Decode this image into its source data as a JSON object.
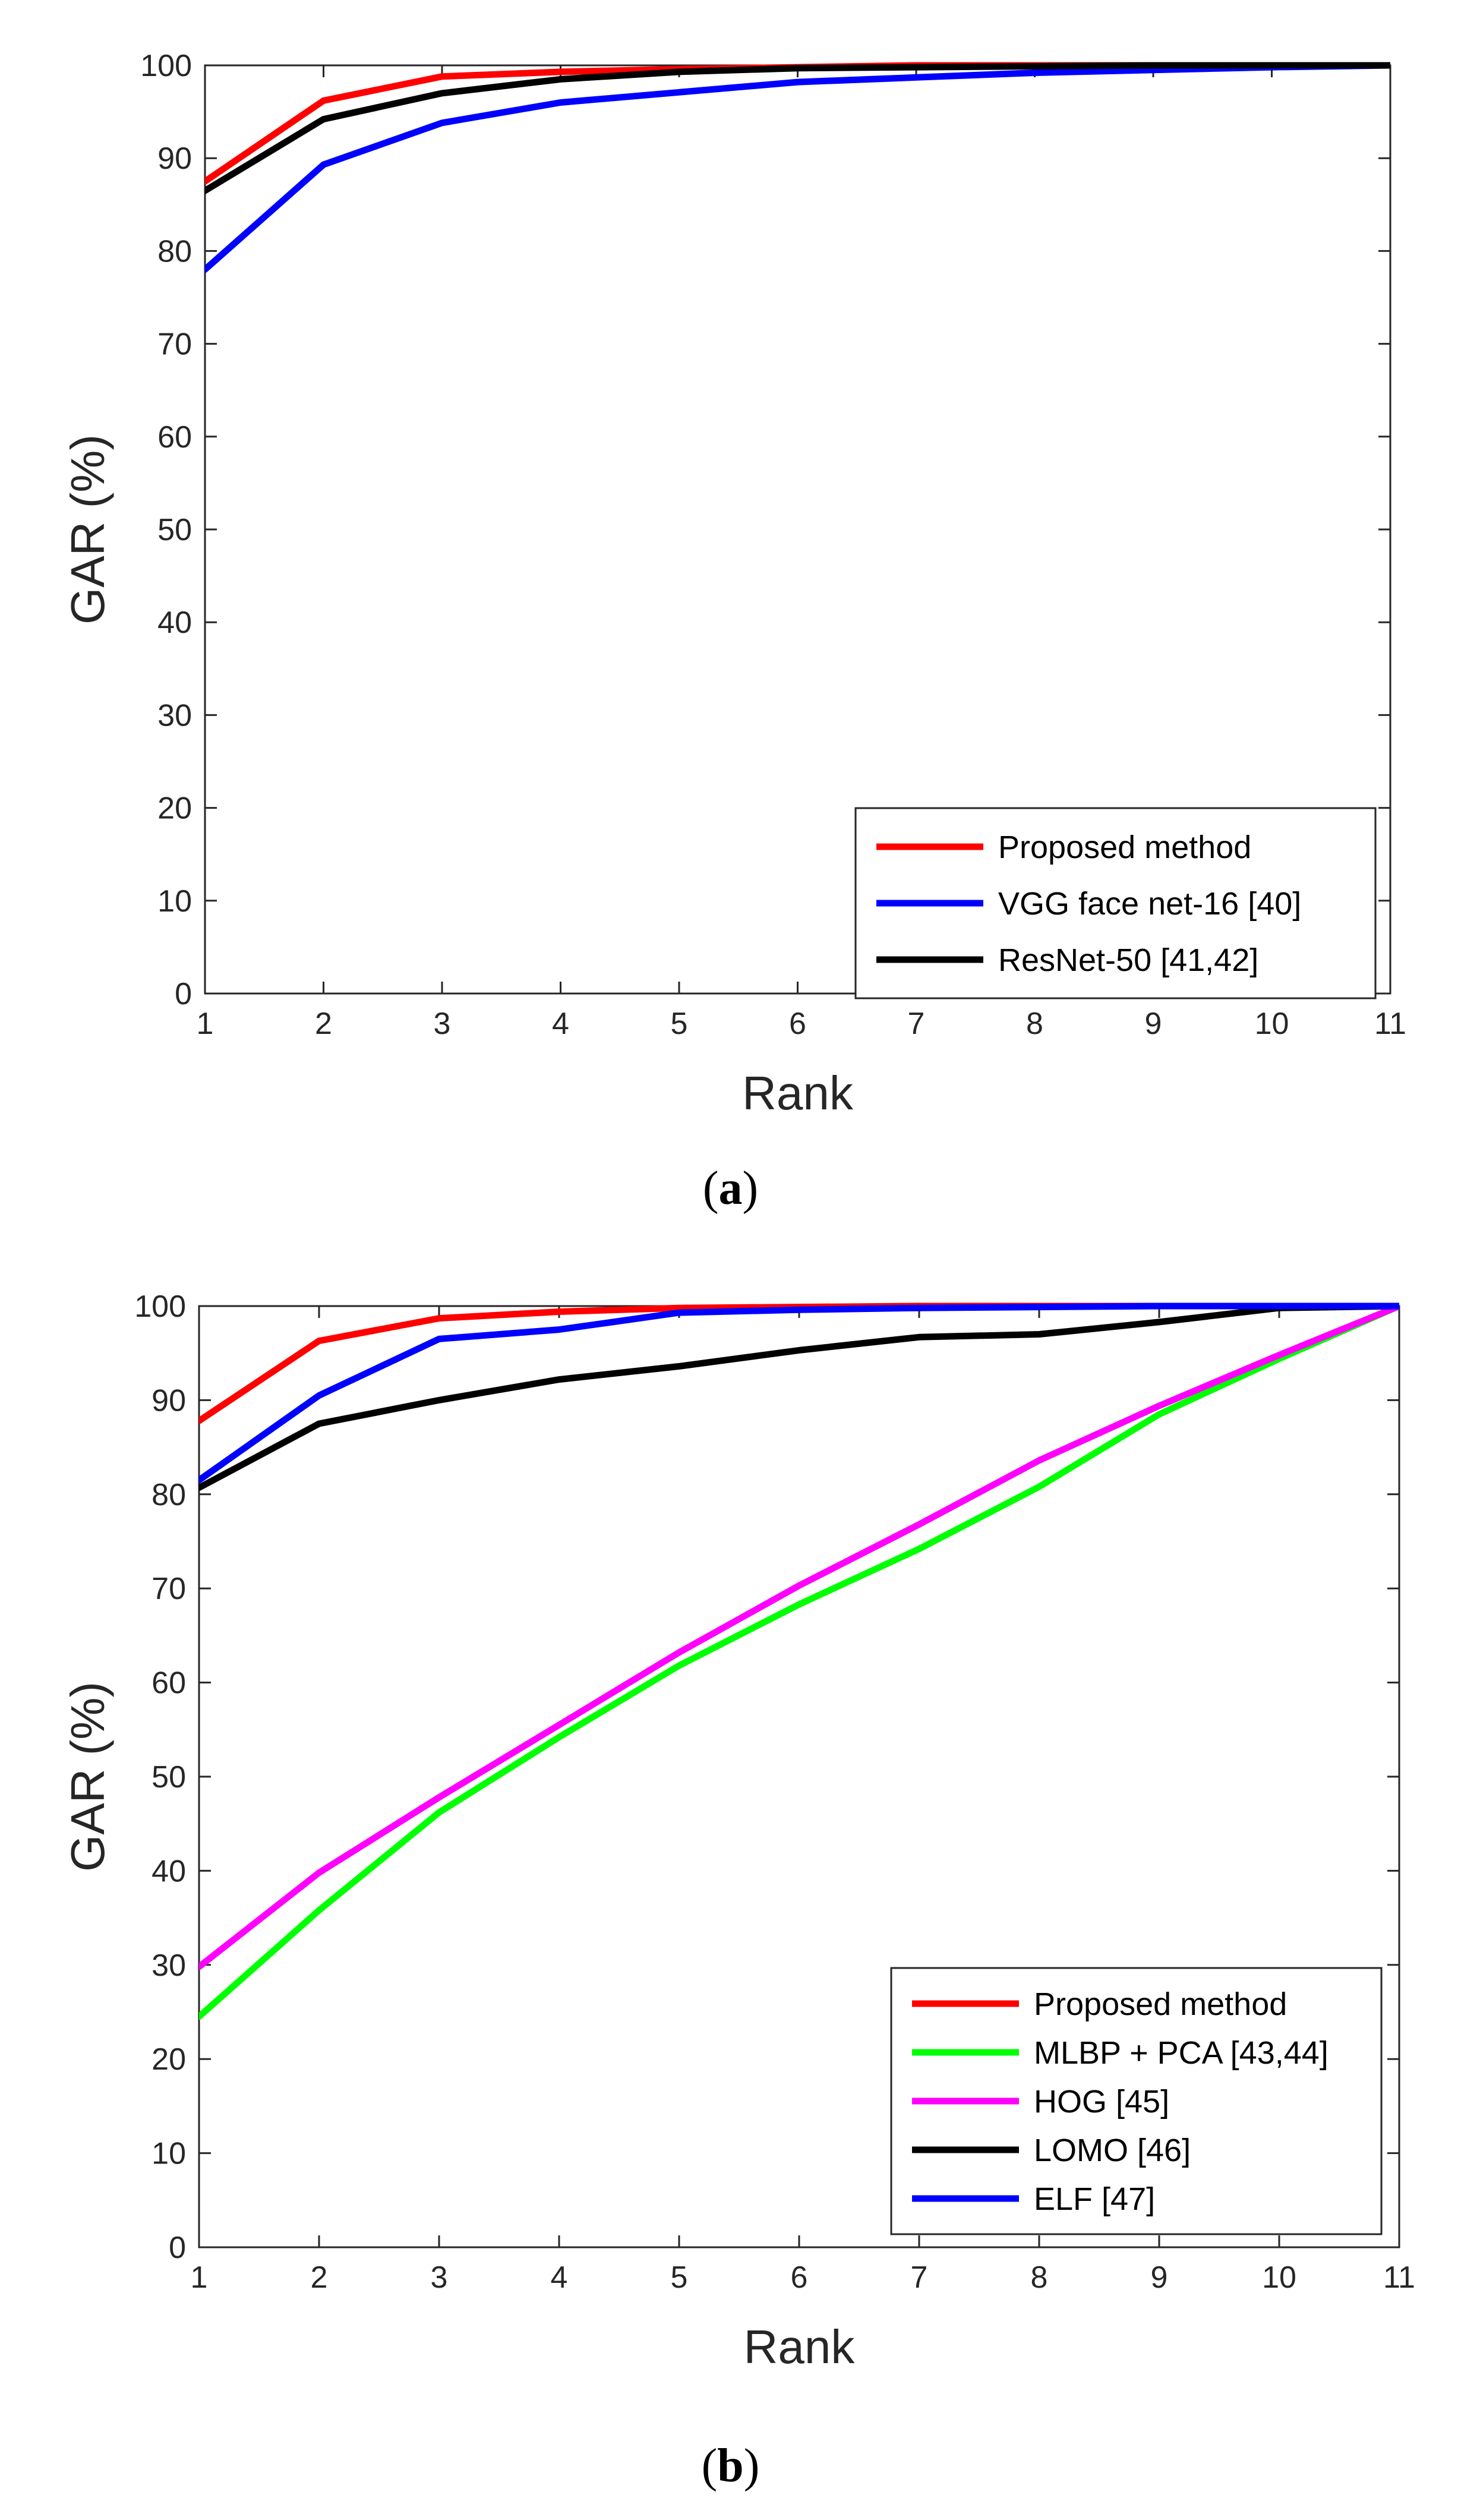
{
  "chart_data": [
    {
      "type": "line",
      "panel_label": "a",
      "xlabel": "Rank",
      "ylabel": "GAR (%)",
      "xlim": [
        1,
        11
      ],
      "ylim": [
        0,
        100
      ],
      "xticks": [
        1,
        2,
        3,
        4,
        5,
        6,
        7,
        8,
        9,
        10,
        11
      ],
      "yticks": [
        0,
        10,
        20,
        30,
        40,
        50,
        60,
        70,
        80,
        90,
        100
      ],
      "legend_position": "bottom-right",
      "x": [
        1,
        2,
        3,
        4,
        5,
        6,
        7,
        8,
        9,
        10,
        11
      ],
      "series": [
        {
          "name": "Proposed method",
          "color": "#ff0000",
          "values": [
            87.5,
            96.2,
            98.8,
            99.3,
            99.6,
            99.8,
            100,
            100,
            100,
            100,
            100
          ]
        },
        {
          "name": "VGG face net-16 [40]",
          "color": "#0000ff",
          "values": [
            78,
            89.3,
            93.8,
            96.0,
            97.1,
            98.2,
            98.7,
            99.2,
            99.5,
            99.8,
            100
          ]
        },
        {
          "name": "ResNet-50 [41,42]",
          "color": "#000000",
          "values": [
            86.5,
            94.2,
            97.0,
            98.5,
            99.3,
            99.7,
            99.8,
            99.9,
            100,
            100,
            100
          ]
        }
      ]
    },
    {
      "type": "line",
      "panel_label": "b",
      "xlabel": "Rank",
      "ylabel": "GAR (%)",
      "xlim": [
        1,
        11
      ],
      "ylim": [
        0,
        100
      ],
      "xticks": [
        1,
        2,
        3,
        4,
        5,
        6,
        7,
        8,
        9,
        10,
        11
      ],
      "yticks": [
        0,
        10,
        20,
        30,
        40,
        50,
        60,
        70,
        80,
        90,
        100
      ],
      "legend_position": "bottom-right",
      "x": [
        1,
        2,
        3,
        4,
        5,
        6,
        7,
        8,
        9,
        10,
        11
      ],
      "series": [
        {
          "name": "Proposed method",
          "color": "#ff0000",
          "values": [
            87.8,
            96.3,
            98.7,
            99.4,
            99.8,
            99.9,
            100,
            100,
            100,
            100,
            100
          ]
        },
        {
          "name": "MLBP + PCA [43,44]",
          "color": "#00ff00",
          "values": [
            24.5,
            35.8,
            46.2,
            54.2,
            61.8,
            68.3,
            74.2,
            80.8,
            88.5,
            94.4,
            100
          ]
        },
        {
          "name": "HOG [45]",
          "color": "#ff00ff",
          "values": [
            29.8,
            39.8,
            47.8,
            55.5,
            63.2,
            70.3,
            76.8,
            83.6,
            89.4,
            94.8,
            100
          ]
        },
        {
          "name": "LOMO [46]",
          "color": "#000000",
          "values": [
            80.7,
            87.5,
            90.0,
            92.2,
            93.6,
            95.3,
            96.7,
            97.0,
            98.3,
            99.8,
            100
          ]
        },
        {
          "name": "ELF [47]",
          "color": "#0000ff",
          "values": [
            81.5,
            90.5,
            96.5,
            97.5,
            99.3,
            99.6,
            99.8,
            99.9,
            100,
            100,
            100
          ]
        }
      ]
    }
  ]
}
